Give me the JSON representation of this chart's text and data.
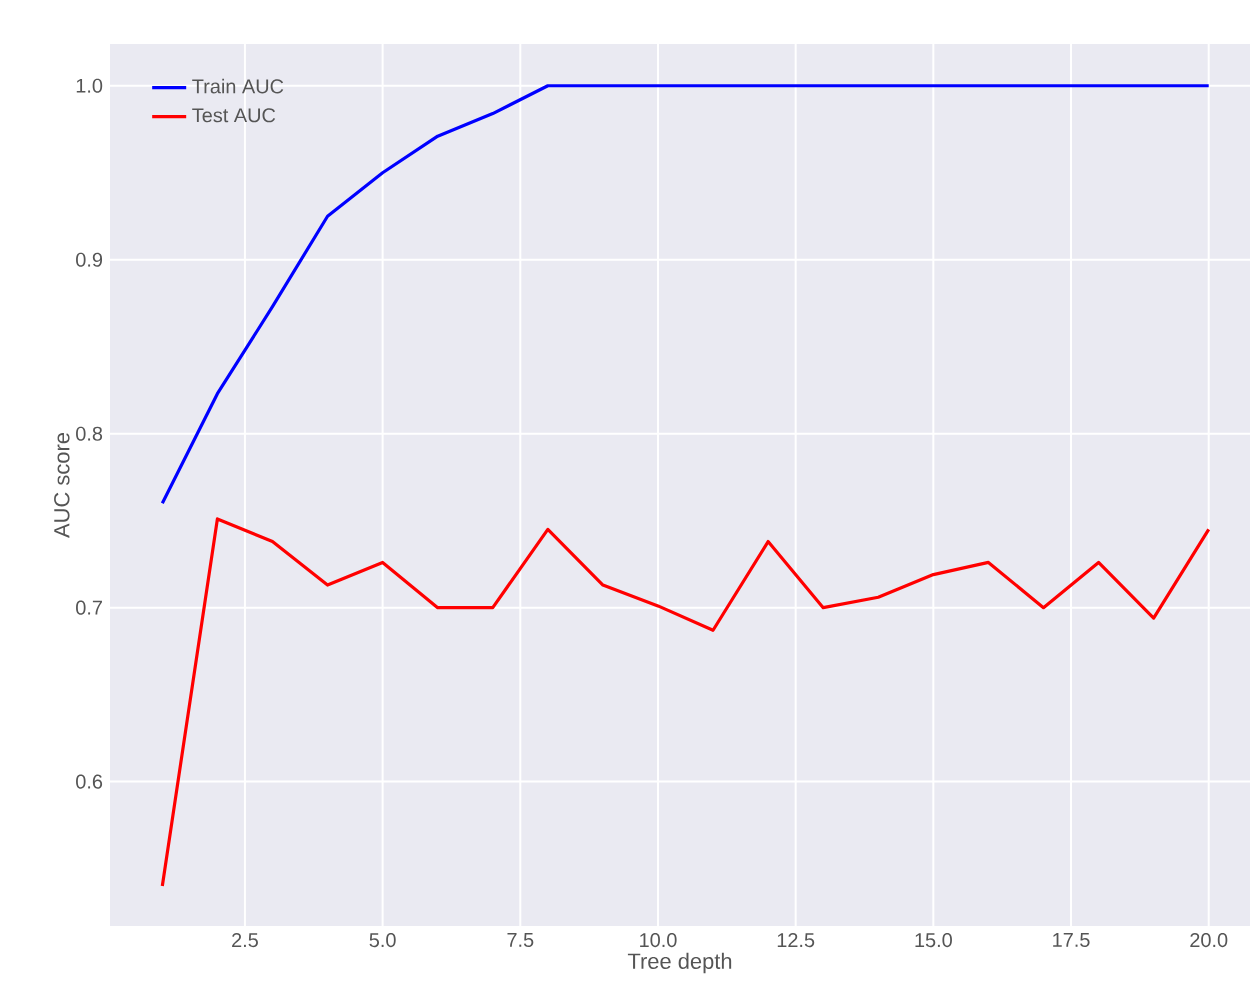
{
  "chart_data": {
    "type": "line",
    "xlabel": "Tree depth",
    "ylabel": "AUC score",
    "x": [
      1,
      2,
      3,
      4,
      5,
      6,
      7,
      8,
      9,
      10,
      11,
      12,
      13,
      14,
      15,
      16,
      17,
      18,
      19,
      20
    ],
    "series": [
      {
        "name": "Train AUC",
        "color": "#0000ff",
        "values": [
          0.76,
          0.823,
          0.873,
          0.925,
          0.95,
          0.971,
          0.984,
          1.0,
          1.0,
          1.0,
          1.0,
          1.0,
          1.0,
          1.0,
          1.0,
          1.0,
          1.0,
          1.0,
          1.0,
          1.0
        ]
      },
      {
        "name": "Test AUC",
        "color": "#ff0000",
        "values": [
          0.54,
          0.751,
          0.738,
          0.713,
          0.726,
          0.7,
          0.7,
          0.745,
          0.713,
          0.701,
          0.687,
          0.738,
          0.7,
          0.706,
          0.719,
          0.726,
          0.7,
          0.726,
          0.694,
          0.745
        ]
      }
    ],
    "xlim": [
      0.05,
      20.75
    ],
    "ylim": [
      0.517,
      1.024
    ],
    "xticks": [
      {
        "value": 2.5,
        "label": "2.5"
      },
      {
        "value": 5,
        "label": "5.0"
      },
      {
        "value": 7.5,
        "label": "7.5"
      },
      {
        "value": 10,
        "label": "10.0"
      },
      {
        "value": 12.5,
        "label": "12.5"
      },
      {
        "value": 15,
        "label": "15.0"
      },
      {
        "value": 17.5,
        "label": "17.5"
      },
      {
        "value": 20,
        "label": "20.0"
      }
    ],
    "yticks": [
      {
        "value": 0.6,
        "label": "0.6"
      },
      {
        "value": 0.7,
        "label": "0.7"
      },
      {
        "value": 0.8,
        "label": "0.8"
      },
      {
        "value": 0.9,
        "label": "0.9"
      },
      {
        "value": 1.0,
        "label": "1.0"
      }
    ],
    "grid": true,
    "legend": "top left",
    "marker": "none",
    "line_style": "solid"
  }
}
